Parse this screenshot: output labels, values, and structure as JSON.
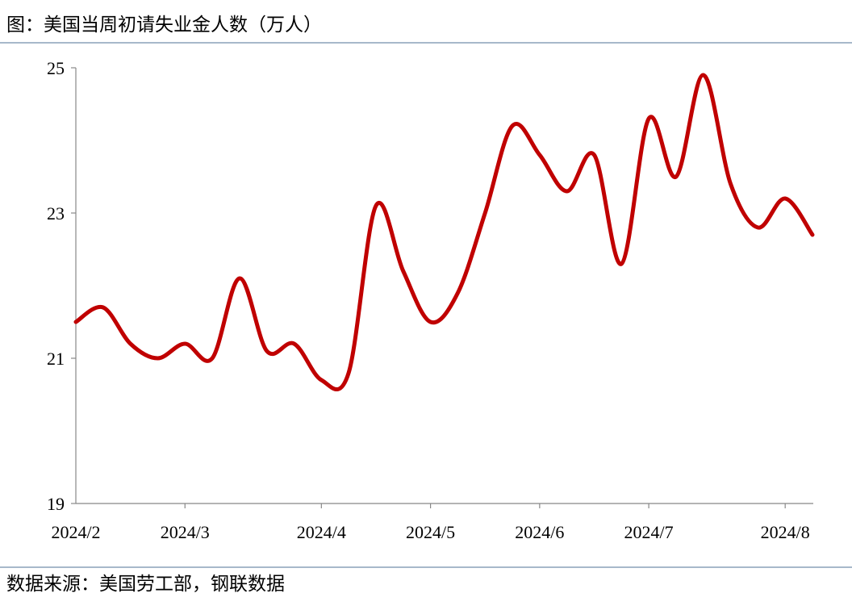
{
  "chart_data": {
    "type": "line",
    "title": "图：美国当周初请失业金人数（万人）",
    "source": "数据来源：美国劳工部，钢联数据",
    "categories": [
      "2024/2",
      null,
      null,
      null,
      "2024/3",
      null,
      null,
      null,
      null,
      "2024/4",
      null,
      null,
      null,
      "2024/5",
      null,
      null,
      null,
      "2024/6",
      null,
      null,
      null,
      "2024/7",
      null,
      null,
      null,
      null,
      "2024/8",
      null
    ],
    "series": [
      {
        "name": "当周初请失业金人数",
        "color": "#c00000",
        "values": [
          21.5,
          21.7,
          21.2,
          21.0,
          21.2,
          21.0,
          22.1,
          21.1,
          21.2,
          20.7,
          20.8,
          23.1,
          22.2,
          21.5,
          21.9,
          23.0,
          24.2,
          23.8,
          23.3,
          23.8,
          22.3,
          24.3,
          23.5,
          24.9,
          23.4,
          22.8,
          23.2,
          22.7
        ]
      }
    ],
    "ylim": [
      19,
      25
    ],
    "yticks": [
      19,
      21,
      23,
      25
    ],
    "grid": false
  }
}
